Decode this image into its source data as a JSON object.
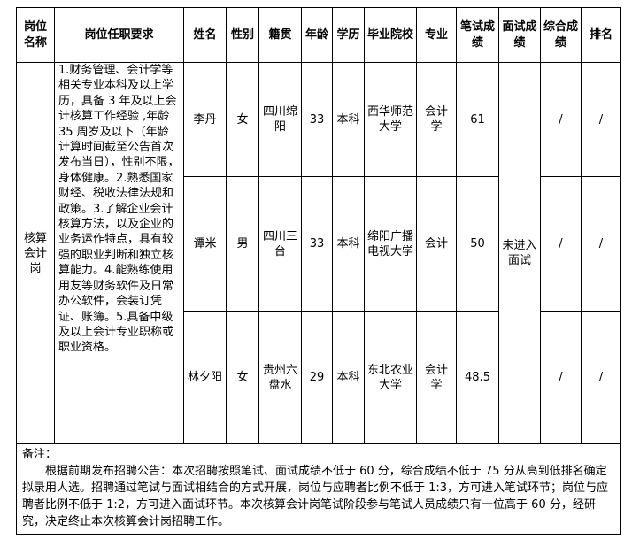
{
  "headers": [
    "岗位名称",
    "岗位任职要求",
    "姓名",
    "性别",
    "籍贯",
    "年龄",
    "学历",
    "毕业院校",
    "专业",
    "笔试成绩",
    "面试成绩",
    "综合成绩",
    "排名"
  ],
  "position": "核算会计岗",
  "requirements": "1.财务管理、会计学等相关专业本科及以上学历，具备 3 年及以上会计核算工作经验 ,年龄 35 周岁及以下（年龄计算时间截至公告首次发布当日），性别不限，身体健康。2.熟悉国家财经、税收法律法规和政策。3.了解企业会计核算方法，以及企业的业务运作特点，具有较强的职业判断和独立核算能力。4.能熟练使用用友等财务软件及日常办公软件，会装订凭证、账簿。5.具备中级及以上会计专业职称或职业资格。",
  "interview_all": "未进入面试",
  "rows": [
    {
      "name": "李丹",
      "gender": "女",
      "origin": "四川绵阳",
      "age": "33",
      "edu": "本科",
      "school": "西华师范大学",
      "major": "会计学",
      "written": "61",
      "total": "/",
      "rank": "/"
    },
    {
      "name": "谭米",
      "gender": "男",
      "origin": "四川三台",
      "age": "33",
      "edu": "本科",
      "school": "绵阳广播电视大学",
      "major": "会计",
      "written": "50",
      "total": "/",
      "rank": "/"
    },
    {
      "name": "林夕阳",
      "gender": "女",
      "origin": "贵州六盘水",
      "age": "29",
      "edu": "本科",
      "school": "东北农业大学",
      "major": "会计学",
      "written": "48.5",
      "total": "/",
      "rank": "/"
    }
  ],
  "note": {
    "label": "备注：",
    "text": "根据前期发布招聘公告：本次招聘按照笔试、面试成绩不低于 60 分，综合成绩不低于 75 分从高到低排名确定拟录用人选。招聘通过笔试与面试相结合的方式开展，岗位与应聘者比例不低于 1:3，方可进入笔试环节；岗位与应聘者比例不低于 1:2，方可进入面试环节。本次核算会计岗笔试阶段参与笔试人员成绩只有一位高于 60 分，经研究，决定终止本次核算会计岗招聘工作。"
  }
}
